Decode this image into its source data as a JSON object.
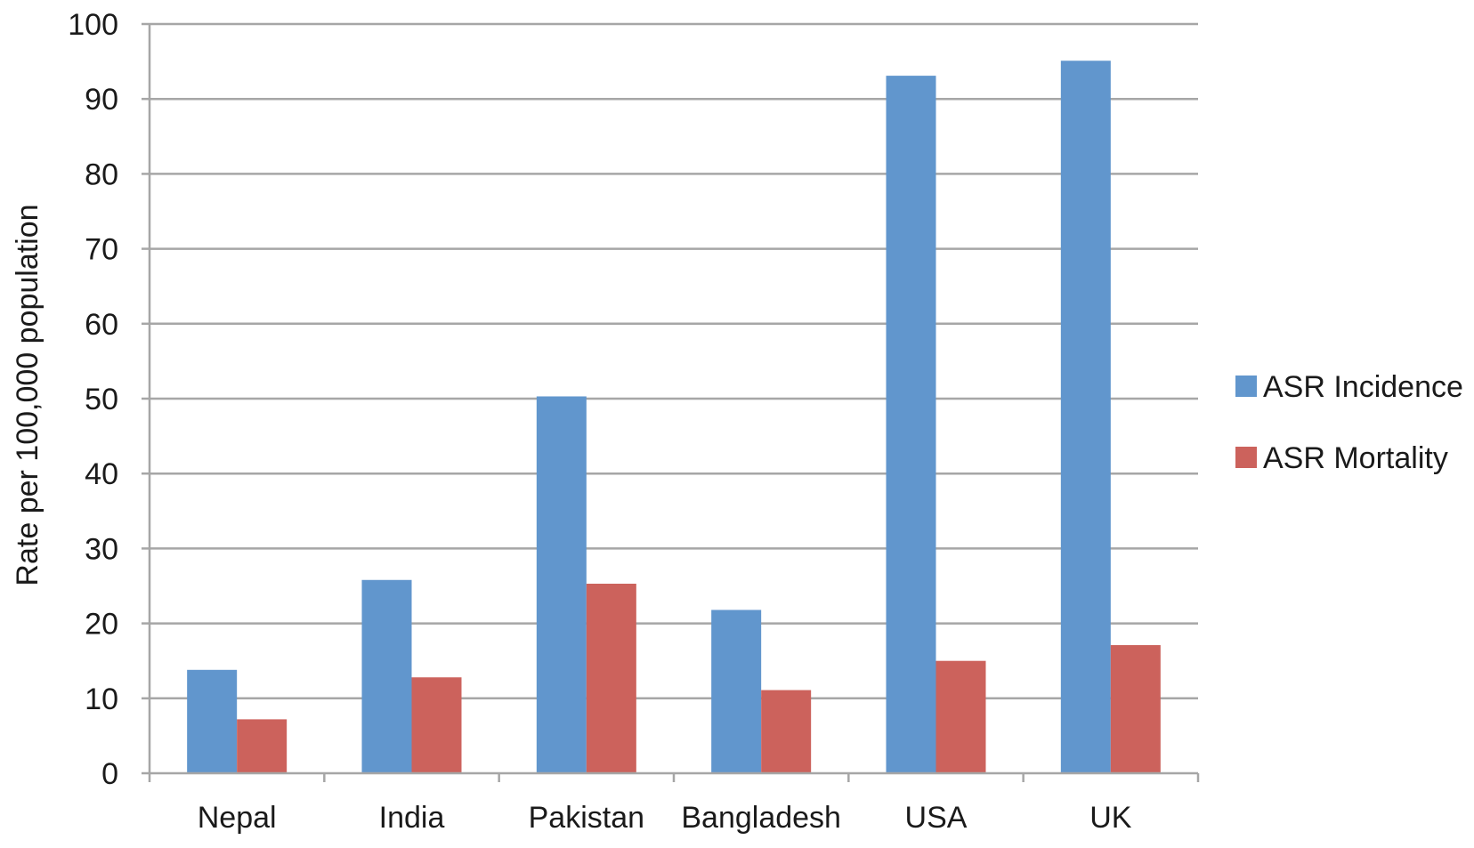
{
  "chart_data": {
    "type": "bar",
    "title": "",
    "xlabel": "",
    "ylabel": "Rate per 100,000 population",
    "ylim": [
      0,
      100
    ],
    "yticks": [
      "0",
      "10",
      "20",
      "30",
      "40",
      "50",
      "60",
      "70",
      "80",
      "90",
      "100"
    ],
    "grid": true,
    "legend_position": "right",
    "categories": [
      "Nepal",
      "India",
      "Pakistan",
      "Bangladesh",
      "USA",
      "UK"
    ],
    "series": [
      {
        "name": "ASR Incidence",
        "color": "#6196cd",
        "values": [
          13.8,
          25.8,
          50.3,
          21.8,
          93.1,
          95.1
        ]
      },
      {
        "name": "ASR Mortality",
        "color": "#cc625c",
        "values": [
          7.2,
          12.8,
          25.3,
          11.1,
          15.0,
          17.1
        ]
      }
    ]
  }
}
